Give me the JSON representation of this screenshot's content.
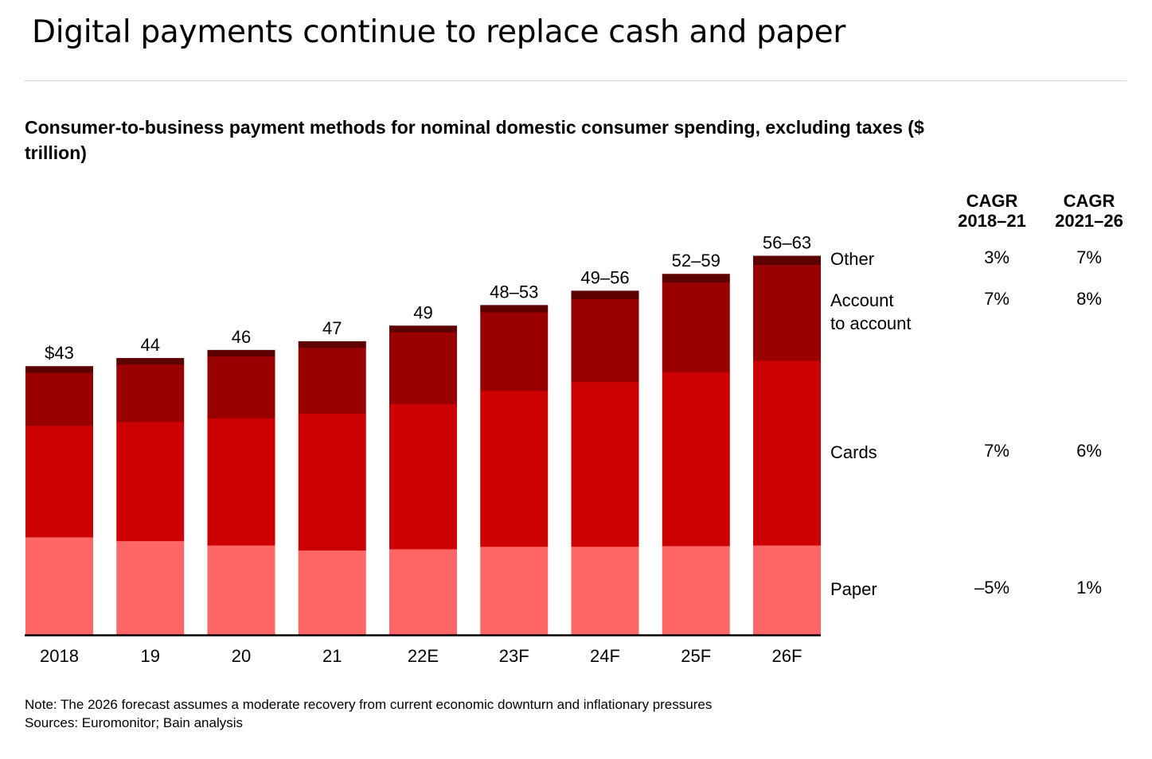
{
  "title": "Digital payments continue to replace cash and paper",
  "chart_data": {
    "type": "bar",
    "stacked": true,
    "title": "Consumer-to-business payment methods for nominal domestic consumer spending, excluding taxes ($ trillion)",
    "xlabel": "",
    "ylabel": "",
    "ylim": [
      0,
      64
    ],
    "grid": false,
    "categories": [
      "2018",
      "19",
      "20",
      "21",
      "22E",
      "23F",
      "24F",
      "25F",
      "26F"
    ],
    "total_labels": [
      "$43",
      "44",
      "46",
      "47",
      "49",
      "48–53",
      "49–56",
      "52–59",
      "56–63"
    ],
    "series": [
      {
        "name": "Paper",
        "color": "#ff6666",
        "values": [
          15.7,
          15.1,
          14.4,
          13.6,
          13.8,
          14.2,
          14.2,
          14.3,
          14.4
        ]
      },
      {
        "name": "Cards",
        "color": "#cc0000",
        "values": [
          17.9,
          19.1,
          20.4,
          21.9,
          23.3,
          25.0,
          26.4,
          27.9,
          29.6
        ]
      },
      {
        "name": "Account to account",
        "color": "#990000",
        "values": [
          8.5,
          9.2,
          9.9,
          10.6,
          11.5,
          12.6,
          13.3,
          14.4,
          15.4
        ]
      },
      {
        "name": "Other",
        "color": "#5c0000",
        "values": [
          1.0,
          1.0,
          1.0,
          1.0,
          1.0,
          1.1,
          1.3,
          1.3,
          1.4
        ]
      }
    ],
    "legend_placement": "right",
    "cagr": {
      "headers": [
        "CAGR 2018–21",
        "CAGR 2021–26"
      ],
      "header_lines": [
        [
          "CAGR",
          "2018–21"
        ],
        [
          "CAGR",
          "2021–26"
        ]
      ],
      "rows": [
        {
          "label_lines": [
            "Other"
          ],
          "values": [
            "3%",
            "7%"
          ]
        },
        {
          "label_lines": [
            "Account",
            "to account"
          ],
          "values": [
            "7%",
            "8%"
          ]
        },
        {
          "label_lines": [
            "Cards"
          ],
          "values": [
            "7%",
            "6%"
          ]
        },
        {
          "label_lines": [
            "Paper"
          ],
          "values": [
            "–5%",
            "1%"
          ]
        }
      ]
    }
  },
  "note": "Note: The 2026 forecast assumes a moderate recovery from current economic downturn and inflationary pressures",
  "sources": "Sources: Euromonitor; Bain analysis"
}
